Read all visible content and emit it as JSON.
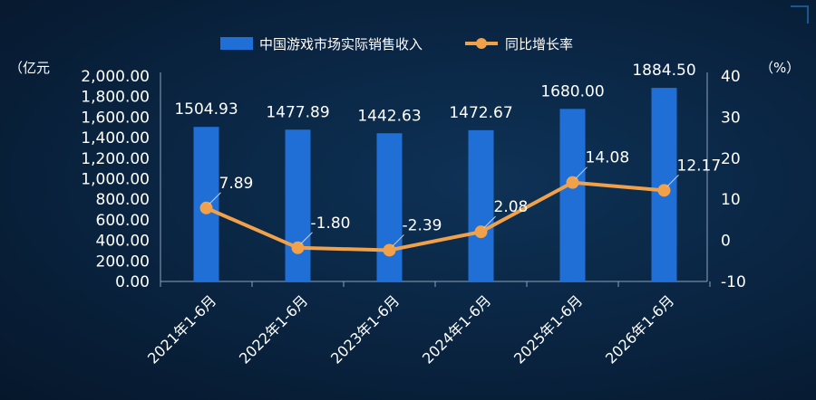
{
  "chart_data": {
    "type": "bar",
    "categories": [
      "2021年1-6月",
      "2022年1-6月",
      "2023年1-6月",
      "2024年1-6月",
      "2025年1-6月",
      "2026年1-6月"
    ],
    "series": [
      {
        "name": "中国游戏市场实际销售收入",
        "type": "bar",
        "axis": "left",
        "values": [
          1504.93,
          1477.89,
          1442.63,
          1472.67,
          1680.0,
          1884.5
        ],
        "labels": [
          "1504.93",
          "1477.89",
          "1442.63",
          "1472.67",
          "1680.00",
          "1884.50"
        ]
      },
      {
        "name": "同比增长率",
        "type": "line",
        "axis": "right",
        "values": [
          7.89,
          -1.8,
          -2.39,
          2.08,
          14.08,
          12.17
        ],
        "labels": [
          "7.89",
          "-1.80",
          "-2.39",
          "2.08",
          "14.08",
          "12.17"
        ]
      }
    ],
    "y_left": {
      "unit_label": "（亿元",
      "range": [
        0,
        2000
      ],
      "ticks": [
        "0.00",
        "200.00",
        "400.00",
        "600.00",
        "800.00",
        "1,000.00",
        "1,200.00",
        "1,400.00",
        "1,600.00",
        "1,800.00",
        "2,000.00"
      ]
    },
    "y_right": {
      "unit_label": "（%）",
      "range": [
        -10,
        40
      ],
      "ticks": [
        "-10",
        "0",
        "10",
        "20",
        "30",
        "40"
      ]
    },
    "legend_position": "top-center",
    "grid": false,
    "colors": {
      "bar": "#1f6fd6",
      "line": "#f0a14a",
      "text": "#ffffff",
      "axis": "#8aa2bd"
    }
  }
}
